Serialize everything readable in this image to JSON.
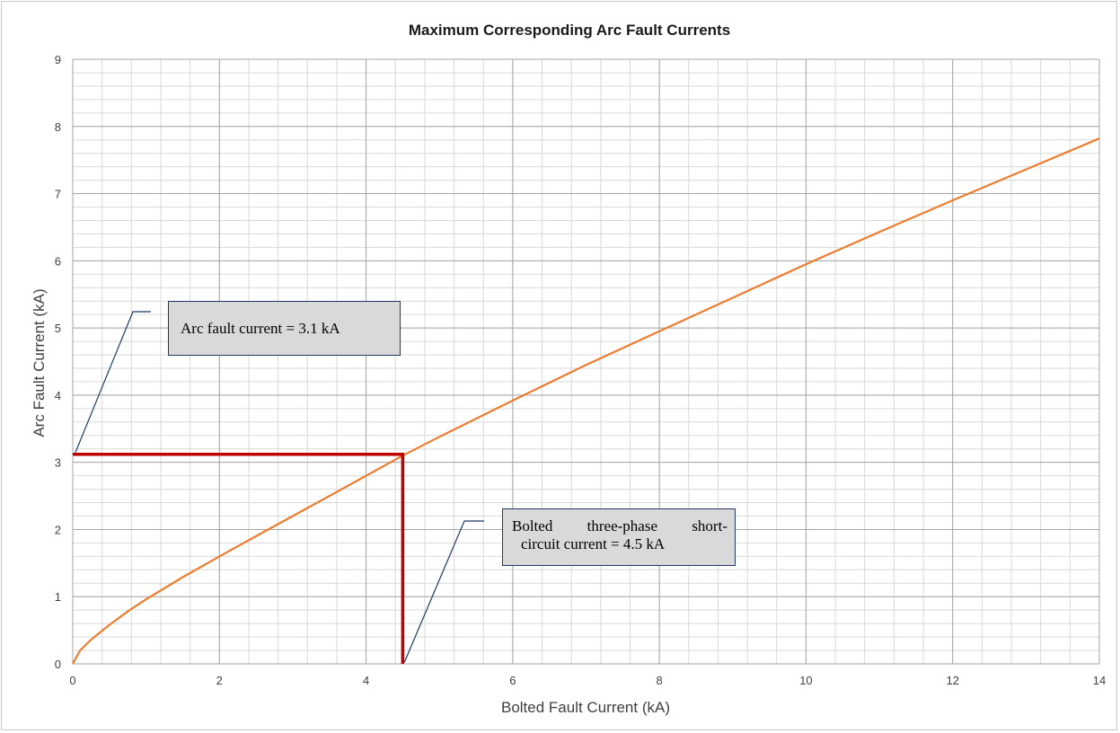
{
  "chart_data": {
    "type": "line",
    "title": "Maximum Corresponding Arc Fault Currents",
    "xlabel": "Bolted Fault Current (kA)",
    "ylabel": "Arc Fault Current (kA)",
    "xlim": [
      0,
      14
    ],
    "ylim": [
      0,
      9
    ],
    "x_ticks": [
      "0",
      "2",
      "4",
      "6",
      "8",
      "10",
      "12",
      "14"
    ],
    "y_ticks": [
      "0",
      "1",
      "2",
      "3",
      "4",
      "5",
      "6",
      "7",
      "8",
      "9"
    ],
    "grid": true,
    "series": [
      {
        "color": "#ed7d31",
        "x": [
          0,
          0.1,
          0.25,
          0.5,
          0.75,
          1,
          1.5,
          2,
          2.5,
          3,
          3.5,
          4,
          4.5,
          5,
          5.5,
          6,
          7,
          8,
          9,
          10,
          11,
          12,
          13,
          14
        ],
        "y": [
          0,
          0.2,
          0.36,
          0.58,
          0.78,
          0.96,
          1.29,
          1.6,
          1.9,
          2.2,
          2.5,
          2.8,
          3.1,
          3.38,
          3.65,
          3.92,
          4.45,
          4.95,
          5.45,
          5.95,
          6.43,
          6.9,
          7.36,
          7.82
        ]
      }
    ],
    "reference_lines": [
      {
        "color": "#c00000",
        "points": [
          [
            0,
            3.12
          ],
          [
            4.5,
            3.12
          ],
          [
            4.5,
            0
          ]
        ]
      }
    ],
    "annotations": [
      {
        "name": "arc-fault-callout",
        "text": "Arc fault current = 3.1 kA",
        "points_to": [
          0,
          3.12
        ]
      },
      {
        "name": "bolted-current-callout",
        "line1_words": [
          "Bolted",
          "three-phase",
          "short-"
        ],
        "line2": "circuit current = 4.5 kA",
        "points_to": [
          4.5,
          0
        ]
      }
    ]
  }
}
